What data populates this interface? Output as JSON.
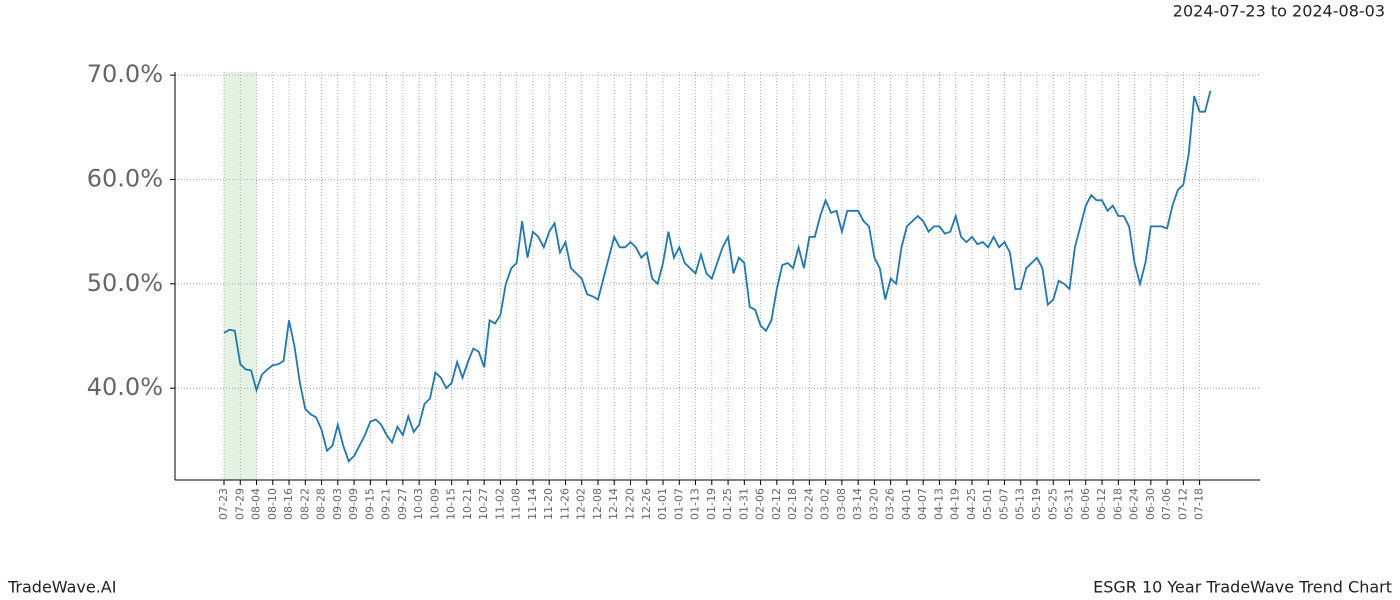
{
  "chart_data": {
    "type": "line",
    "title": "2024-07-23 to 2024-08-03",
    "footer_left": "TradeWave.AI",
    "footer_right": "ESGR 10 Year TradeWave Trend Chart",
    "color": "#1f77b4",
    "highlight": {
      "from": "07-23",
      "to": "08-04",
      "color": "#d9ecd9"
    },
    "grid": true,
    "ylim": [
      31.2,
      70.3
    ],
    "yticks": [
      {
        "value": 40,
        "label": "40.0%"
      },
      {
        "value": 50,
        "label": "50.0%"
      },
      {
        "value": 60,
        "label": "60.0%"
      },
      {
        "value": 70,
        "label": "70.0%"
      }
    ],
    "categories": [
      "07-23",
      null,
      null,
      "07-29",
      null,
      null,
      "08-04",
      null,
      null,
      "08-10",
      null,
      null,
      "08-16",
      null,
      null,
      "08-22",
      null,
      null,
      "08-28",
      null,
      null,
      "09-03",
      null,
      null,
      "09-09",
      null,
      null,
      "09-15",
      null,
      null,
      "09-21",
      null,
      null,
      "09-27",
      null,
      null,
      "10-03",
      null,
      null,
      "10-09",
      null,
      null,
      "10-15",
      null,
      null,
      "10-21",
      null,
      null,
      "10-27",
      null,
      null,
      "11-02",
      null,
      null,
      "11-08",
      null,
      null,
      "11-14",
      null,
      null,
      "11-20",
      null,
      null,
      "11-26",
      null,
      null,
      "12-02",
      null,
      null,
      "12-08",
      null,
      null,
      "12-14",
      null,
      null,
      "12-20",
      null,
      null,
      "12-26",
      null,
      null,
      "01-01",
      null,
      null,
      "01-07",
      null,
      null,
      "01-13",
      null,
      null,
      "01-19",
      null,
      null,
      "01-25",
      null,
      null,
      "01-31",
      null,
      null,
      "02-06",
      null,
      null,
      "02-12",
      null,
      null,
      "02-18",
      null,
      null,
      "02-24",
      null,
      null,
      "03-02",
      null,
      null,
      "03-08",
      null,
      null,
      "03-14",
      null,
      null,
      "03-20",
      null,
      null,
      "03-26",
      null,
      null,
      "04-01",
      null,
      null,
      "04-07",
      null,
      null,
      "04-13",
      null,
      null,
      "04-19",
      null,
      null,
      "04-25",
      null,
      null,
      "05-01",
      null,
      null,
      "05-07",
      null,
      null,
      "05-13",
      null,
      null,
      "05-19",
      null,
      null,
      "05-25",
      null,
      null,
      "05-31",
      null,
      null,
      "06-06",
      null,
      null,
      "06-12",
      null,
      null,
      "06-18",
      null,
      null,
      "06-24",
      null,
      null,
      "06-30",
      null,
      null,
      "07-06",
      null,
      null,
      "07-12",
      null,
      null,
      "07-18",
      null,
      null
    ],
    "values": [
      45.3,
      45.6,
      45.5,
      42.3,
      41.8,
      41.7,
      39.8,
      41.3,
      41.8,
      42.2,
      42.3,
      42.6,
      46.5,
      44.0,
      40.5,
      38.0,
      37.5,
      37.2,
      36.0,
      34.0,
      34.5,
      36.5,
      34.5,
      33.0,
      33.5,
      34.5,
      35.5,
      36.8,
      37.0,
      36.5,
      35.5,
      34.8,
      36.3,
      35.5,
      37.3,
      35.8,
      36.5,
      38.5,
      39.0,
      41.5,
      41.0,
      40.0,
      40.5,
      42.5,
      41.0,
      42.5,
      43.8,
      43.5,
      42.0,
      46.5,
      46.2,
      47.0,
      50.0,
      51.5,
      52.0,
      56.0,
      52.5,
      55.0,
      54.5,
      53.5,
      55.0,
      55.8,
      53.0,
      54.0,
      51.5,
      51.0,
      50.5,
      49.0,
      48.8,
      48.5,
      50.5,
      52.5,
      54.5,
      53.5,
      53.5,
      54.0,
      53.5,
      52.5,
      53.0,
      50.5,
      50.0,
      52.0,
      55.0,
      52.5,
      53.5,
      52.0,
      51.5,
      51.0,
      52.8,
      51.0,
      50.5,
      52.0,
      53.5,
      54.5,
      51.0,
      52.5,
      52.0,
      47.8,
      47.5,
      46.0,
      45.5,
      46.5,
      49.5,
      51.8,
      52.0,
      51.5,
      53.5,
      51.5,
      54.5,
      54.5,
      56.5,
      58.0,
      56.8,
      57.0,
      55.0,
      57.0,
      57.0,
      57.0,
      56.0,
      55.5,
      52.5,
      51.5,
      48.5,
      50.5,
      50.0,
      53.5,
      55.5,
      56.0,
      56.5,
      56.0,
      55.0,
      55.5,
      55.5,
      54.8,
      55.0,
      56.5,
      54.5,
      54.0,
      54.5,
      53.8,
      54.0,
      53.5,
      54.5,
      53.5,
      54.0,
      53.0,
      49.5,
      49.5,
      51.5,
      52.0,
      52.5,
      51.5,
      48.0,
      48.5,
      50.3,
      50.0,
      49.5,
      53.5,
      55.5,
      57.5,
      58.5,
      58.0,
      58.0,
      57.0,
      57.5,
      56.5,
      56.5,
      55.5,
      52.0,
      50.0,
      52.0,
      55.5,
      55.5,
      55.5,
      55.3,
      57.5,
      59.0,
      59.5,
      62.5,
      68.0,
      66.5,
      66.5,
      68.5
    ]
  }
}
